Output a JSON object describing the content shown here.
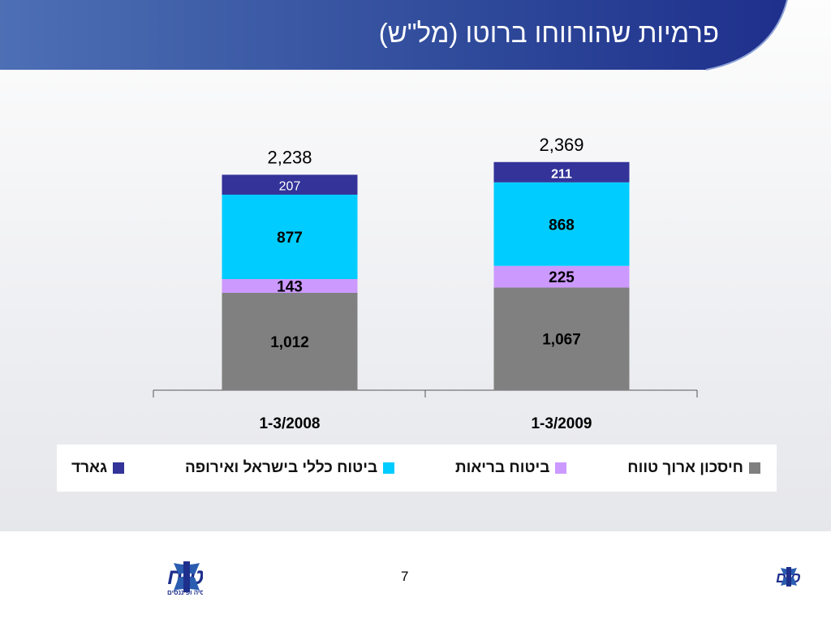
{
  "slide": {
    "title": "פרמיות שהורווחו ברוטו (מל\"ש)",
    "page_number": "7"
  },
  "logos": {
    "left_main": "כללביטוח",
    "left_sub": "מקבוצת כלל ביטוח פנסיה ופיננסים",
    "right_main": "קבוצת כלל ביטוח פנסיה ופיננסים"
  },
  "colors": {
    "banner_dark": "#1e2f8c",
    "banner_light": "#4d6fb4",
    "long_term_savings": "#808080",
    "health": "#cc99ff",
    "general_insurance": "#00ccff",
    "guard": "#333399"
  },
  "chart_data": {
    "type": "bar",
    "stacked": true,
    "categories": [
      "1-3/2008",
      "1-3/2009"
    ],
    "series": [
      {
        "name": "חיסכון ארוך טווח",
        "values": [
          1012,
          1067
        ],
        "labels": [
          "1,012",
          "1,067"
        ],
        "color": "#808080"
      },
      {
        "name": "ביטוח בריאות",
        "values": [
          143,
          225
        ],
        "labels": [
          "143",
          "225"
        ],
        "color": "#cc99ff"
      },
      {
        "name": "ביטוח כללי בישראל ואירופה",
        "values": [
          877,
          868
        ],
        "labels": [
          "877",
          "868"
        ],
        "color": "#00ccff"
      },
      {
        "name": "גארד",
        "values": [
          207,
          211
        ],
        "labels": [
          "207",
          "211"
        ],
        "color": "#333399"
      }
    ],
    "totals": [
      "2,238",
      "2,369"
    ],
    "ylim": [
      0,
      2369
    ],
    "legend_position": "bottom",
    "grid": false
  }
}
